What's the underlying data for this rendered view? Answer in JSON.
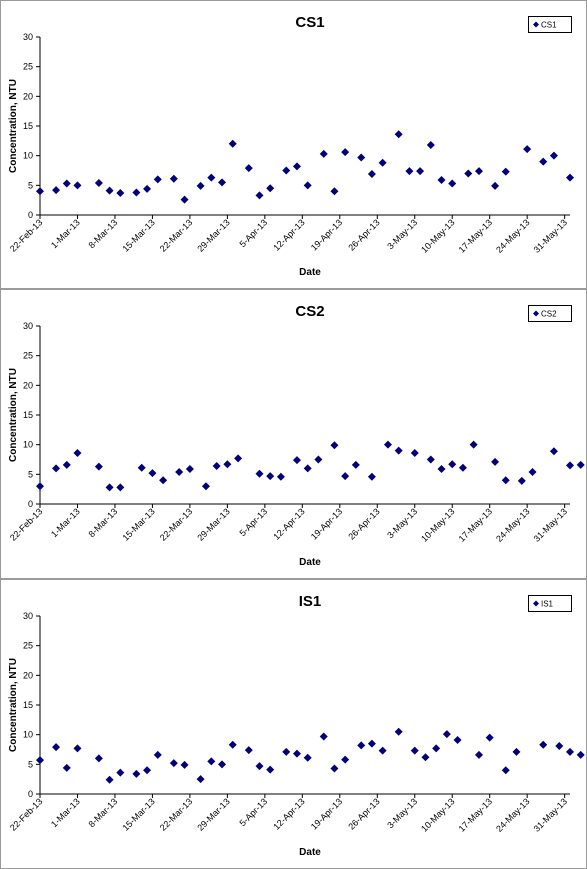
{
  "chart_data": [
    {
      "type": "scatter",
      "title": "CS1",
      "xlabel": "Date",
      "ylabel": "Concentration, NTU",
      "ylim": [
        0,
        30
      ],
      "yticks": [
        0,
        5,
        10,
        15,
        20,
        25,
        30
      ],
      "xlim": [
        "2013-02-22",
        "2013-06-01"
      ],
      "xtick_labels": [
        "22-Feb-13",
        "1-Mar-13",
        "8-Mar-13",
        "15-Mar-13",
        "22-Mar-13",
        "29-Mar-13",
        "5-Apr-13",
        "12-Apr-13",
        "19-Apr-13",
        "26-Apr-13",
        "3-May-13",
        "10-May-13",
        "17-May-13",
        "24-May-13",
        "31-May-13"
      ],
      "legend_position": "top-right",
      "series": [
        {
          "name": "CS1",
          "color": "#00007a",
          "points": [
            {
              "x": "2013-02-22",
              "y": 4.0
            },
            {
              "x": "2013-02-25",
              "y": 4.2
            },
            {
              "x": "2013-02-27",
              "y": 5.3
            },
            {
              "x": "2013-03-01",
              "y": 5.0
            },
            {
              "x": "2013-03-05",
              "y": 5.4
            },
            {
              "x": "2013-03-07",
              "y": 4.1
            },
            {
              "x": "2013-03-09",
              "y": 3.7
            },
            {
              "x": "2013-03-12",
              "y": 3.8
            },
            {
              "x": "2013-03-14",
              "y": 4.4
            },
            {
              "x": "2013-03-16",
              "y": 6.0
            },
            {
              "x": "2013-03-19",
              "y": 6.1
            },
            {
              "x": "2013-03-21",
              "y": 2.6
            },
            {
              "x": "2013-03-24",
              "y": 4.9
            },
            {
              "x": "2013-03-26",
              "y": 6.3
            },
            {
              "x": "2013-03-28",
              "y": 5.5
            },
            {
              "x": "2013-03-30",
              "y": 12.0
            },
            {
              "x": "2013-04-02",
              "y": 7.9
            },
            {
              "x": "2013-04-04",
              "y": 3.3
            },
            {
              "x": "2013-04-06",
              "y": 4.5
            },
            {
              "x": "2013-04-09",
              "y": 7.5
            },
            {
              "x": "2013-04-11",
              "y": 8.2
            },
            {
              "x": "2013-04-13",
              "y": 5.0
            },
            {
              "x": "2013-04-16",
              "y": 10.3
            },
            {
              "x": "2013-04-18",
              "y": 4.0
            },
            {
              "x": "2013-04-20",
              "y": 10.6
            },
            {
              "x": "2013-04-23",
              "y": 9.7
            },
            {
              "x": "2013-04-25",
              "y": 6.9
            },
            {
              "x": "2013-04-27",
              "y": 8.8
            },
            {
              "x": "2013-04-30",
              "y": 13.6
            },
            {
              "x": "2013-05-02",
              "y": 7.4
            },
            {
              "x": "2013-05-04",
              "y": 7.4
            },
            {
              "x": "2013-05-06",
              "y": 11.8
            },
            {
              "x": "2013-05-08",
              "y": 5.9
            },
            {
              "x": "2013-05-10",
              "y": 5.3
            },
            {
              "x": "2013-05-13",
              "y": 7.0
            },
            {
              "x": "2013-05-15",
              "y": 7.4
            },
            {
              "x": "2013-05-18",
              "y": 4.9
            },
            {
              "x": "2013-05-20",
              "y": 7.3
            },
            {
              "x": "2013-05-24",
              "y": 11.1
            },
            {
              "x": "2013-05-27",
              "y": 9.0
            },
            {
              "x": "2013-05-29",
              "y": 10.0
            },
            {
              "x": "2013-06-01",
              "y": 6.3
            }
          ]
        }
      ]
    },
    {
      "type": "scatter",
      "title": "CS2",
      "xlabel": "Date",
      "ylabel": "Concentration, NTU",
      "ylim": [
        0,
        30
      ],
      "yticks": [
        0,
        5,
        10,
        15,
        20,
        25,
        30
      ],
      "xlim": [
        "2013-02-22",
        "2013-06-01"
      ],
      "xtick_labels": [
        "22-Feb-13",
        "1-Mar-13",
        "8-Mar-13",
        "15-Mar-13",
        "22-Mar-13",
        "29-Mar-13",
        "5-Apr-13",
        "12-Apr-13",
        "19-Apr-13",
        "26-Apr-13",
        "3-May-13",
        "10-May-13",
        "17-May-13",
        "24-May-13",
        "31-May-13"
      ],
      "legend_position": "top-right",
      "series": [
        {
          "name": "CS2",
          "color": "#00007a",
          "points": [
            {
              "x": "2013-02-22",
              "y": 3.0
            },
            {
              "x": "2013-02-25",
              "y": 6.0
            },
            {
              "x": "2013-02-27",
              "y": 6.6
            },
            {
              "x": "2013-03-01",
              "y": 8.6
            },
            {
              "x": "2013-03-05",
              "y": 6.3
            },
            {
              "x": "2013-03-07",
              "y": 2.8
            },
            {
              "x": "2013-03-09",
              "y": 2.8
            },
            {
              "x": "2013-03-13",
              "y": 6.1
            },
            {
              "x": "2013-03-15",
              "y": 5.2
            },
            {
              "x": "2013-03-17",
              "y": 4.0
            },
            {
              "x": "2013-03-20",
              "y": 5.4
            },
            {
              "x": "2013-03-22",
              "y": 5.9
            },
            {
              "x": "2013-03-25",
              "y": 3.0
            },
            {
              "x": "2013-03-27",
              "y": 6.4
            },
            {
              "x": "2013-03-29",
              "y": 6.7
            },
            {
              "x": "2013-03-31",
              "y": 7.7
            },
            {
              "x": "2013-04-04",
              "y": 5.1
            },
            {
              "x": "2013-04-06",
              "y": 4.7
            },
            {
              "x": "2013-04-08",
              "y": 4.6
            },
            {
              "x": "2013-04-11",
              "y": 7.4
            },
            {
              "x": "2013-04-13",
              "y": 6.0
            },
            {
              "x": "2013-04-15",
              "y": 7.5
            },
            {
              "x": "2013-04-18",
              "y": 9.9
            },
            {
              "x": "2013-04-20",
              "y": 4.7
            },
            {
              "x": "2013-04-22",
              "y": 6.6
            },
            {
              "x": "2013-04-25",
              "y": 4.6
            },
            {
              "x": "2013-04-28",
              "y": 10.0
            },
            {
              "x": "2013-04-30",
              "y": 9.0
            },
            {
              "x": "2013-05-03",
              "y": 8.6
            },
            {
              "x": "2013-05-06",
              "y": 7.5
            },
            {
              "x": "2013-05-08",
              "y": 5.9
            },
            {
              "x": "2013-05-10",
              "y": 6.7
            },
            {
              "x": "2013-05-12",
              "y": 6.1
            },
            {
              "x": "2013-05-14",
              "y": 10.0
            },
            {
              "x": "2013-05-18",
              "y": 7.1
            },
            {
              "x": "2013-05-20",
              "y": 4.0
            },
            {
              "x": "2013-05-23",
              "y": 3.9
            },
            {
              "x": "2013-05-25",
              "y": 5.4
            },
            {
              "x": "2013-05-29",
              "y": 8.9
            },
            {
              "x": "2013-06-01",
              "y": 6.5
            },
            {
              "x": "2013-06-03",
              "y": 6.6
            },
            {
              "x": "2013-06-05",
              "y": 4.4
            }
          ]
        }
      ]
    },
    {
      "type": "scatter",
      "title": "IS1",
      "xlabel": "Date",
      "ylabel": "Concentration, NTU",
      "ylim": [
        0,
        30
      ],
      "yticks": [
        0,
        5,
        10,
        15,
        20,
        25,
        30
      ],
      "xlim": [
        "2013-02-22",
        "2013-06-01"
      ],
      "xtick_labels": [
        "22-Feb-13",
        "1-Mar-13",
        "8-Mar-13",
        "15-Mar-13",
        "22-Mar-13",
        "29-Mar-13",
        "5-Apr-13",
        "12-Apr-13",
        "19-Apr-13",
        "26-Apr-13",
        "3-May-13",
        "10-May-13",
        "17-May-13",
        "24-May-13",
        "31-May-13"
      ],
      "legend_position": "top-right",
      "series": [
        {
          "name": "IS1",
          "color": "#00007a",
          "points": [
            {
              "x": "2013-02-22",
              "y": 5.7
            },
            {
              "x": "2013-02-25",
              "y": 7.9
            },
            {
              "x": "2013-02-27",
              "y": 4.4
            },
            {
              "x": "2013-03-01",
              "y": 7.7
            },
            {
              "x": "2013-03-05",
              "y": 6.0
            },
            {
              "x": "2013-03-07",
              "y": 2.4
            },
            {
              "x": "2013-03-09",
              "y": 3.6
            },
            {
              "x": "2013-03-12",
              "y": 3.4
            },
            {
              "x": "2013-03-14",
              "y": 4.0
            },
            {
              "x": "2013-03-16",
              "y": 6.6
            },
            {
              "x": "2013-03-19",
              "y": 5.2
            },
            {
              "x": "2013-03-21",
              "y": 4.9
            },
            {
              "x": "2013-03-24",
              "y": 2.5
            },
            {
              "x": "2013-03-26",
              "y": 5.5
            },
            {
              "x": "2013-03-28",
              "y": 5.0
            },
            {
              "x": "2013-03-30",
              "y": 8.3
            },
            {
              "x": "2013-04-02",
              "y": 7.4
            },
            {
              "x": "2013-04-04",
              "y": 4.7
            },
            {
              "x": "2013-04-06",
              "y": 4.1
            },
            {
              "x": "2013-04-09",
              "y": 7.1
            },
            {
              "x": "2013-04-11",
              "y": 6.8
            },
            {
              "x": "2013-04-13",
              "y": 6.1
            },
            {
              "x": "2013-04-16",
              "y": 9.7
            },
            {
              "x": "2013-04-18",
              "y": 4.3
            },
            {
              "x": "2013-04-20",
              "y": 5.8
            },
            {
              "x": "2013-04-23",
              "y": 8.2
            },
            {
              "x": "2013-04-25",
              "y": 8.5
            },
            {
              "x": "2013-04-27",
              "y": 7.3
            },
            {
              "x": "2013-04-30",
              "y": 10.5
            },
            {
              "x": "2013-05-03",
              "y": 7.3
            },
            {
              "x": "2013-05-05",
              "y": 6.2
            },
            {
              "x": "2013-05-07",
              "y": 7.7
            },
            {
              "x": "2013-05-09",
              "y": 10.1
            },
            {
              "x": "2013-05-11",
              "y": 9.1
            },
            {
              "x": "2013-05-15",
              "y": 6.6
            },
            {
              "x": "2013-05-17",
              "y": 9.5
            },
            {
              "x": "2013-05-20",
              "y": 4.0
            },
            {
              "x": "2013-05-22",
              "y": 7.1
            },
            {
              "x": "2013-05-27",
              "y": 8.3
            },
            {
              "x": "2013-05-30",
              "y": 8.1
            },
            {
              "x": "2013-06-01",
              "y": 7.1
            },
            {
              "x": "2013-06-03",
              "y": 6.6
            }
          ]
        }
      ]
    }
  ]
}
